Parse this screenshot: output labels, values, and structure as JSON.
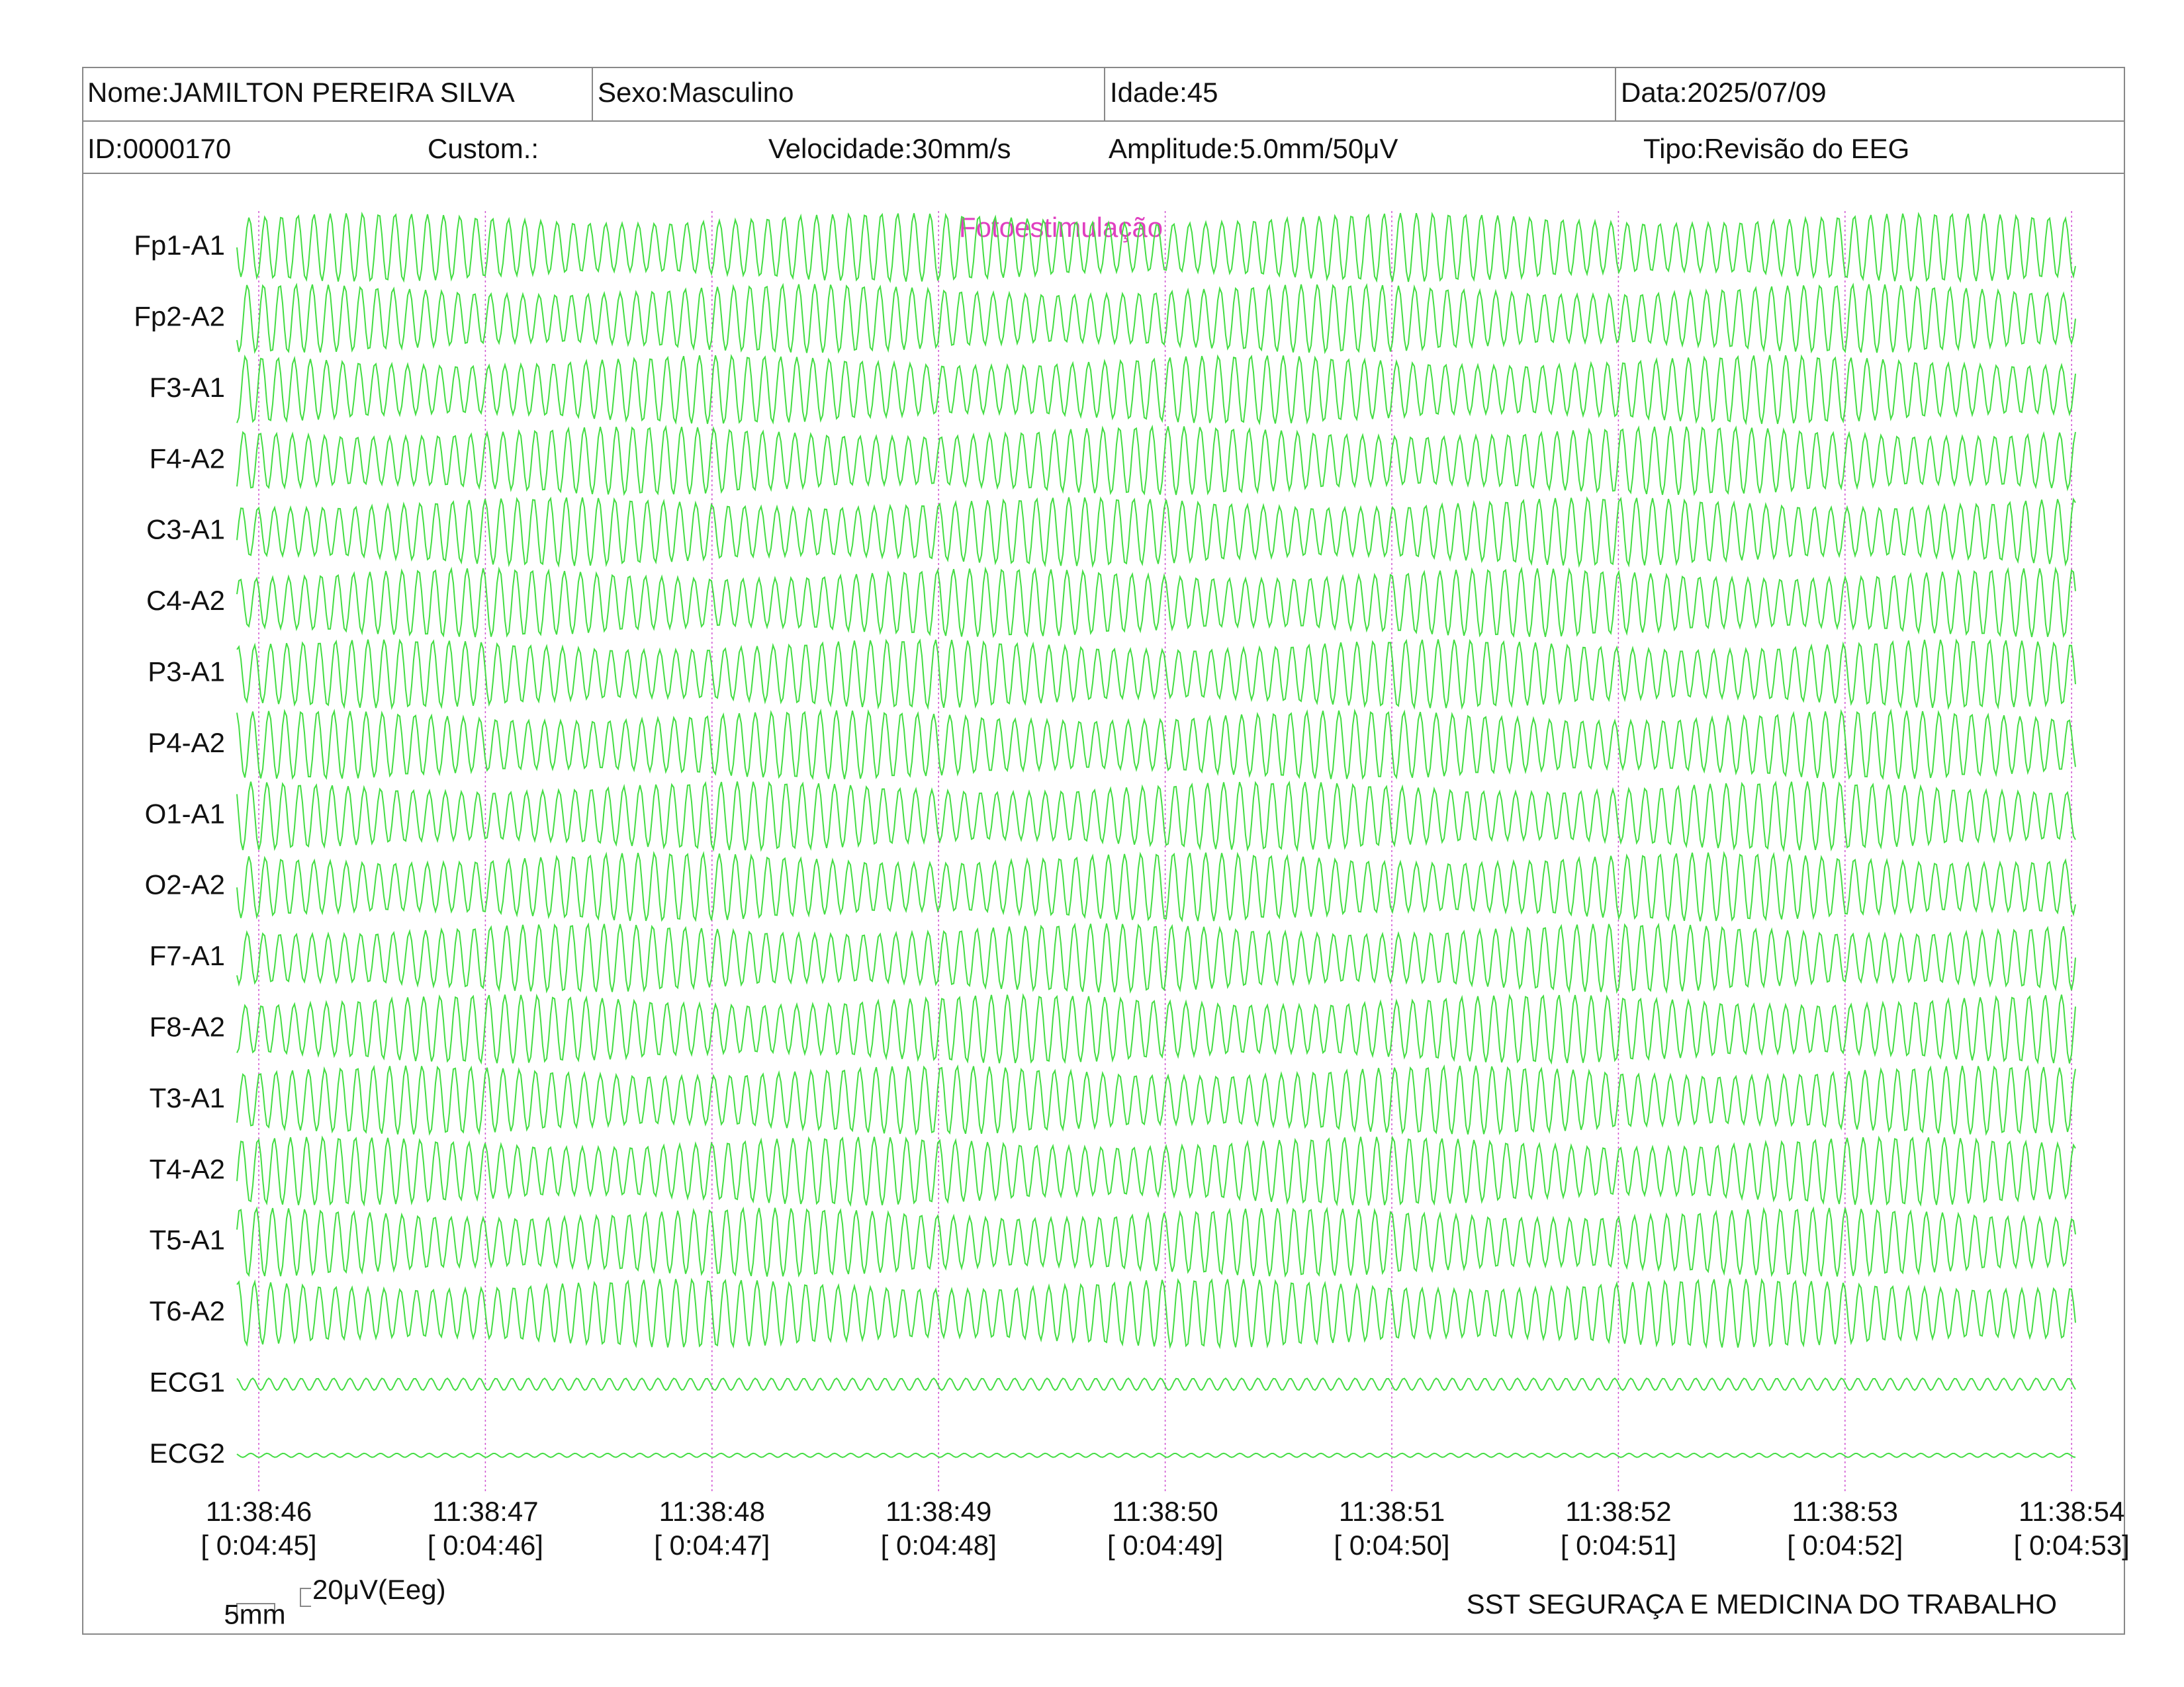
{
  "header": {
    "rows": [
      [
        "Nome:JAMILTON PEREIRA SILVA",
        "Sexo:Masculino",
        "Idade:45",
        "Data:2025/07/09"
      ],
      [
        "ID:0000170",
        "Custom.:",
        "Velocidade:30mm/s",
        "Amplitude:5.0mm/50μV",
        "Tipo:Revisão do EEG"
      ]
    ]
  },
  "annotation": "Fotoestimulação",
  "channels": [
    "Fp1-A1",
    "Fp2-A2",
    "F3-A1",
    "F4-A2",
    "C3-A1",
    "C4-A2",
    "P3-A1",
    "P4-A2",
    "O1-A1",
    "O2-A2",
    "F7-A1",
    "F8-A2",
    "T3-A1",
    "T4-A2",
    "T5-A1",
    "T6-A2",
    "ECG1",
    "ECG2"
  ],
  "time_marks": [
    {
      "time": "11:38:46",
      "elapsed": "[ 0:04:45]"
    },
    {
      "time": "11:38:47",
      "elapsed": "[ 0:04:46]"
    },
    {
      "time": "11:38:48",
      "elapsed": "[ 0:04:47]"
    },
    {
      "time": "11:38:49",
      "elapsed": "[ 0:04:48]"
    },
    {
      "time": "11:38:50",
      "elapsed": "[ 0:04:49]"
    },
    {
      "time": "11:38:51",
      "elapsed": "[ 0:04:50]"
    },
    {
      "time": "11:38:52",
      "elapsed": "[ 0:04:51]"
    },
    {
      "time": "11:38:53",
      "elapsed": "[ 0:04:52]"
    },
    {
      "time": "11:38:54",
      "elapsed": "[ 0:04:53]"
    }
  ],
  "calibration": {
    "time_scale": "5mm",
    "amplitude_scale": "20μV(Eeg)"
  },
  "footer": "SST SEGURAÇA E MEDICINA DO TRABALHO"
}
